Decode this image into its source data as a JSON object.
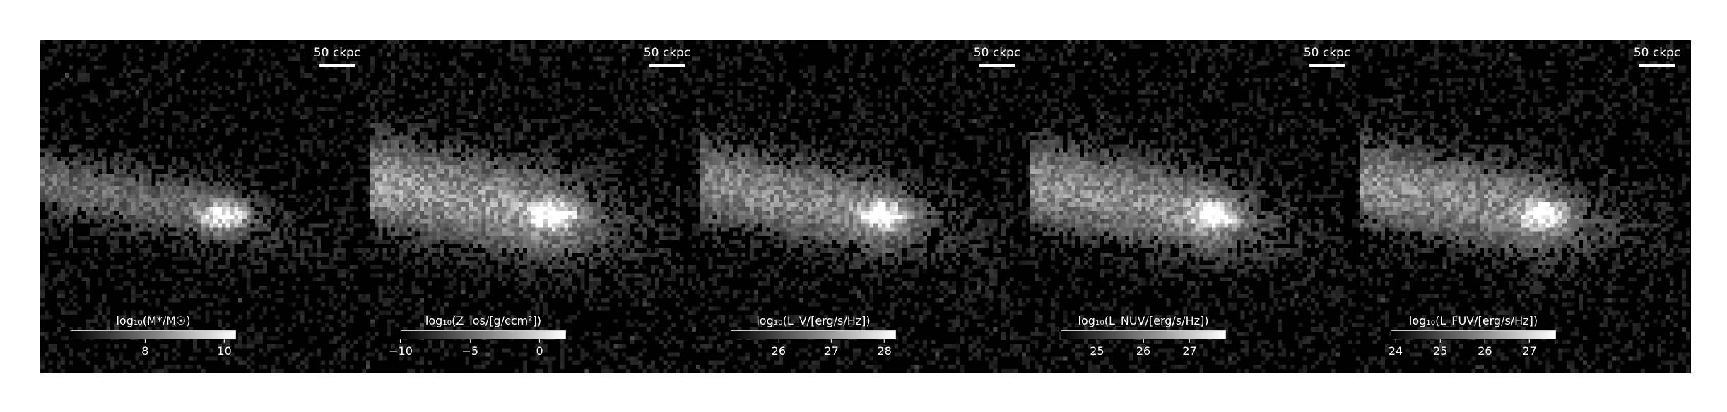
{
  "panels": [
    {
      "scale_label": "50 ckpc",
      "cbar_label": "log₁₀(M*/M☉)",
      "ticks": [
        {
          "label": "8",
          "pos": 0.45
        },
        {
          "label": "10",
          "pos": 0.93
        }
      ],
      "fill": 0.55,
      "seed": 11
    },
    {
      "scale_label": "50 ckpc",
      "cbar_label": "log₁₀(Z_los/[g/ccm²])",
      "ticks": [
        {
          "label": "−10",
          "pos": 0.0
        },
        {
          "label": "−5",
          "pos": 0.42
        },
        {
          "label": "0",
          "pos": 0.84
        }
      ],
      "fill": 0.95,
      "seed": 23
    },
    {
      "scale_label": "50 ckpc",
      "cbar_label": "log₁₀(L_V/[erg/s/Hz])",
      "ticks": [
        {
          "label": "26",
          "pos": 0.29
        },
        {
          "label": "27",
          "pos": 0.61
        },
        {
          "label": "28",
          "pos": 0.93
        }
      ],
      "fill": 0.8,
      "seed": 37
    },
    {
      "scale_label": "50 ckpc",
      "cbar_label": "log₁₀(L_NUV/[erg/s/Hz])",
      "ticks": [
        {
          "label": "25",
          "pos": 0.22
        },
        {
          "label": "26",
          "pos": 0.5
        },
        {
          "label": "27",
          "pos": 0.78
        }
      ],
      "fill": 0.85,
      "seed": 41
    },
    {
      "scale_label": "50 ckpc",
      "cbar_label": "log₁₀(L_FUV/[erg/s/Hz])",
      "ticks": [
        {
          "label": "24",
          "pos": 0.03
        },
        {
          "label": "25",
          "pos": 0.3
        },
        {
          "label": "26",
          "pos": 0.57
        },
        {
          "label": "27",
          "pos": 0.84
        }
      ],
      "fill": 0.85,
      "seed": 53
    }
  ]
}
